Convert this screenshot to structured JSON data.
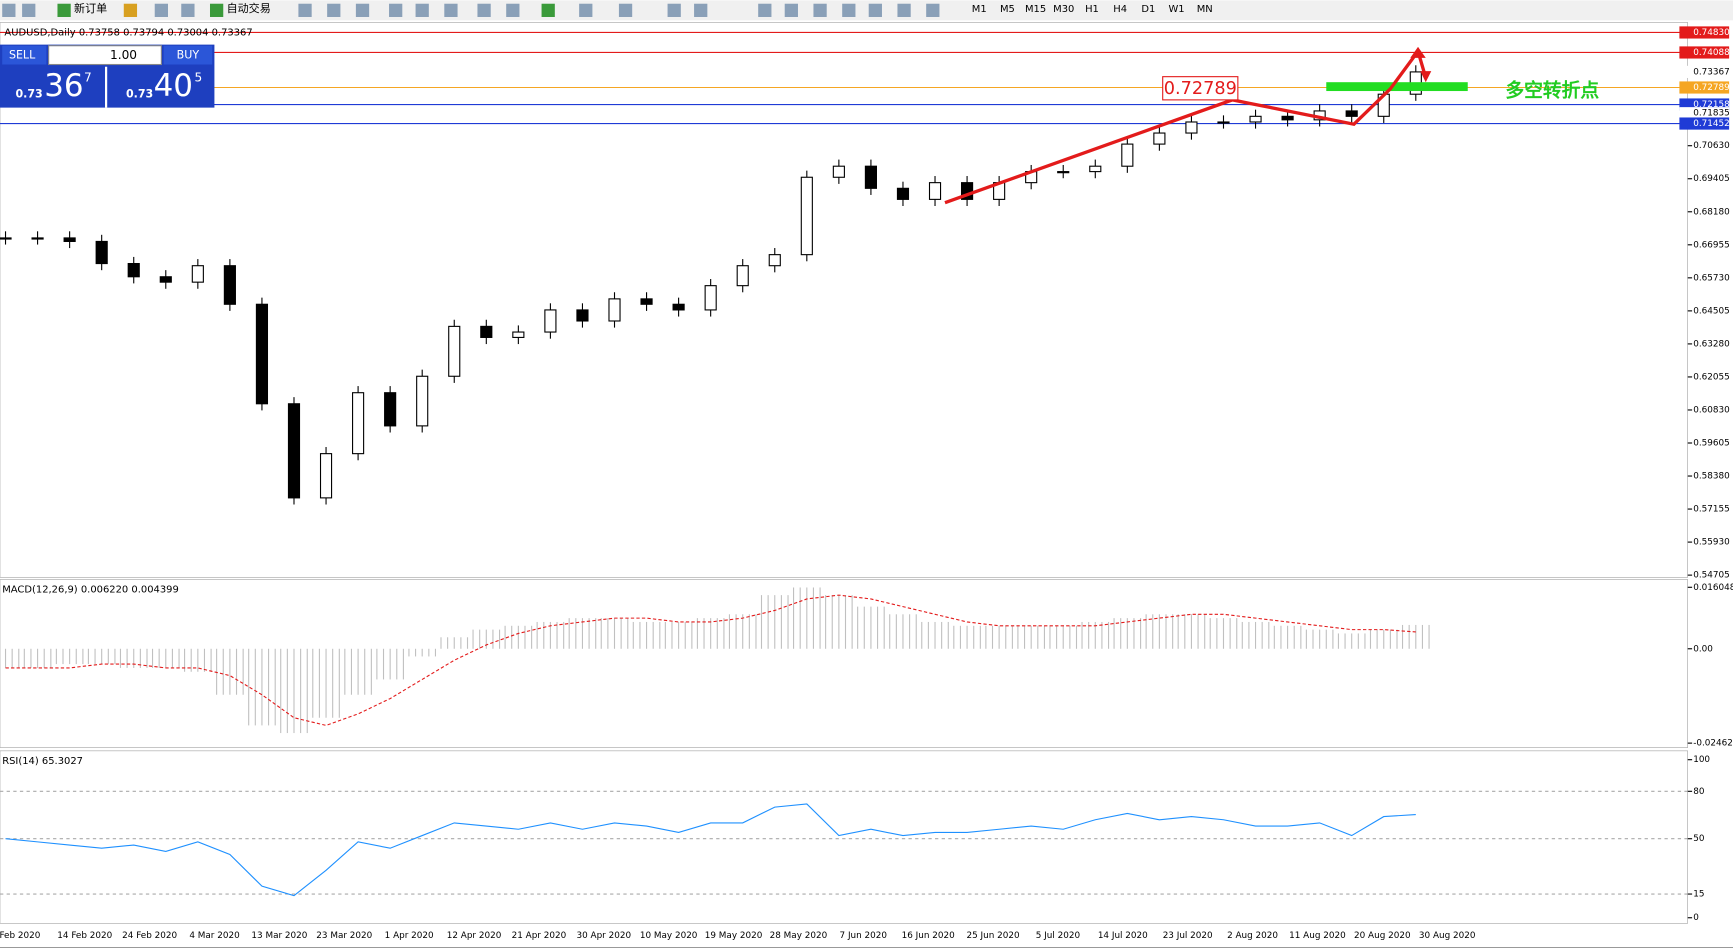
{
  "toolbar": {
    "new_order": "新订单",
    "auto_trading": "自动交易",
    "timeframes": [
      "M1",
      "M5",
      "M15",
      "M30",
      "H1",
      "H4",
      "D1",
      "W1",
      "MN"
    ]
  },
  "trade_panel": {
    "sell": "SELL",
    "buy": "BUY",
    "lot": "1.00",
    "sell_price": [
      "0.73",
      "36",
      "7"
    ],
    "buy_price": [
      "0.73",
      "40",
      "5"
    ]
  },
  "chart_data": [
    {
      "type": "candlestick",
      "title": "AUDUSD,Daily  0.73758 0.73794 0.73004 0.73367",
      "close": [
        0.6721,
        0.6721,
        0.6708,
        0.6626,
        0.6577,
        0.6557,
        0.6618,
        0.6475,
        0.6106,
        0.5757,
        0.5921,
        0.6147,
        0.6024,
        0.6208,
        0.6393,
        0.6352,
        0.6372,
        0.6454,
        0.6413,
        0.6495,
        0.6475,
        0.6454,
        0.6544,
        0.6618,
        0.6659,
        0.6946,
        0.6987,
        0.6905,
        0.6864,
        0.6926,
        0.6864,
        0.6926,
        0.6967,
        0.6967,
        0.6987,
        0.7069,
        0.711,
        0.7151,
        0.7151,
        0.7172,
        0.7159,
        0.7192,
        0.7172,
        0.7254,
        0.73367
      ],
      "date_labels": [
        "Feb 2020",
        "14 Feb 2020",
        "24 Feb 2020",
        "4 Mar 2020",
        "13 Mar 2020",
        "23 Mar 2020",
        "1 Apr 2020",
        "12 Apr 2020",
        "21 Apr 2020",
        "30 Apr 2020",
        "10 May 2020",
        "19 May 2020",
        "28 May 2020",
        "7 Jun 2020",
        "16 Jun 2020",
        "25 Jun 2020",
        "5 Jul 2020",
        "14 Jul 2020",
        "23 Jul 2020",
        "2 Aug 2020",
        "11 Aug 2020",
        "20 Aug 2020",
        "30 Aug 2020"
      ],
      "ylim": [
        0.54705,
        0.7483
      ],
      "yticks": [
        {
          "value": 0.7063,
          "label": "0.70630"
        },
        0.69405,
        {
          "value": 0.6818,
          "label": "0.68180"
        },
        0.66955,
        {
          "value": 0.6573,
          "label": "0.65730"
        },
        0.64505,
        {
          "value": 0.6328,
          "label": "0.63280"
        },
        0.62055,
        {
          "value": 0.6083,
          "label": "0.60830"
        },
        0.59605,
        {
          "value": 0.5838,
          "label": "0.58380"
        },
        0.57155,
        {
          "value": 0.5593,
          "label": "0.55930"
        },
        0.54705
      ],
      "price_levels": [
        {
          "value": 0.7483,
          "label": "0.74830",
          "color": "#e31b1b",
          "line": true
        },
        {
          "value": 0.74088,
          "label": "0.74088",
          "color": "#e31b1b",
          "line": true
        },
        {
          "value": 0.73367,
          "label": "0.73367",
          "color": "#000000",
          "line": false
        },
        {
          "value": 0.72789,
          "label": "0.72789",
          "color": "#f5a623",
          "line": true
        },
        {
          "value": 0.72158,
          "label": "0.72158",
          "color": "#1f3bd6",
          "line": true
        },
        {
          "value": 0.71835,
          "label": "0.71835",
          "color": "#000000",
          "line": false
        },
        {
          "value": 0.71452,
          "label": "0.71452",
          "color": "#1f3bd6",
          "line": true
        }
      ],
      "annotations": {
        "level_box": "0.72789",
        "turning_point": "多空转折点"
      }
    },
    {
      "type": "macd",
      "title": "MACD(12,26,9) 0.006220 0.004399",
      "series": [
        {
          "name": "MACD",
          "color": "#c0c0c0",
          "values": [
            -0.005,
            -0.005,
            -0.004,
            -0.004,
            -0.005,
            -0.005,
            -0.006,
            -0.012,
            -0.02,
            -0.022,
            -0.018,
            -0.012,
            -0.008,
            -0.002,
            0.003,
            0.005,
            0.006,
            0.007,
            0.008,
            0.008,
            0.007,
            0.007,
            0.008,
            0.009,
            0.014,
            0.016,
            0.014,
            0.011,
            0.009,
            0.007,
            0.006,
            0.006,
            0.006,
            0.006,
            0.007,
            0.008,
            0.009,
            0.009,
            0.008,
            0.007,
            0.006,
            0.005,
            0.004,
            0.005,
            0.00622
          ]
        },
        {
          "name": "Signal",
          "color": "#e31b1b",
          "values": [
            -0.005,
            -0.005,
            -0.005,
            -0.004,
            -0.004,
            -0.005,
            -0.005,
            -0.007,
            -0.012,
            -0.018,
            -0.02,
            -0.017,
            -0.013,
            -0.008,
            -0.003,
            0.001,
            0.004,
            0.006,
            0.007,
            0.008,
            0.008,
            0.007,
            0.007,
            0.008,
            0.01,
            0.013,
            0.014,
            0.013,
            0.011,
            0.009,
            0.007,
            0.006,
            0.006,
            0.006,
            0.006,
            0.007,
            0.008,
            0.009,
            0.009,
            0.008,
            0.007,
            0.006,
            0.005,
            0.005,
            0.004399
          ]
        }
      ],
      "ylim": [
        -0.024625,
        0.016048
      ],
      "yticks": [
        0.016048,
        {
          "value": 0,
          "label": "0.00"
        },
        -0.024625
      ]
    },
    {
      "type": "rsi",
      "title": "RSI(14) 65.3027",
      "color": "#1e90ff",
      "values": [
        50,
        48,
        46,
        44,
        46,
        42,
        48,
        40,
        20,
        14,
        30,
        48,
        44,
        52,
        60,
        58,
        56,
        60,
        56,
        60,
        58,
        54,
        60,
        60,
        70,
        72,
        52,
        56,
        52,
        54,
        54,
        56,
        58,
        56,
        62,
        66,
        62,
        64,
        62,
        58,
        58,
        60,
        52,
        64,
        65.3027
      ],
      "ylim": [
        0,
        100
      ],
      "yticks": [
        100,
        80,
        50,
        15,
        0
      ],
      "levels": [
        80,
        50,
        15
      ]
    }
  ]
}
